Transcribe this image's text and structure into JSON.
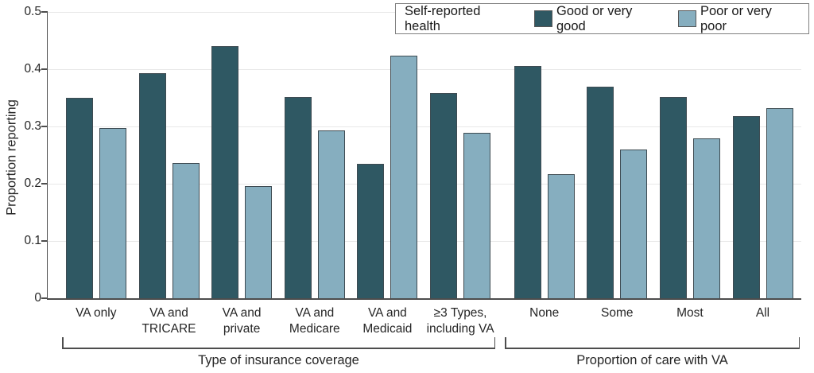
{
  "chart_data": {
    "type": "bar",
    "title": "",
    "ylabel": "Proportion reporting",
    "ylim": [
      0,
      0.5
    ],
    "yticks": [
      0,
      0.1,
      0.2,
      0.3,
      0.4,
      0.5
    ],
    "ytick_labels": [
      "0",
      "0.1",
      "0.2",
      "0.3",
      "0.4",
      "0.5"
    ],
    "grid": "horizontal",
    "legend": {
      "title": "Self-reported health",
      "position": "top-right"
    },
    "categories": [
      "VA only",
      "VA and TRICARE",
      "VA and private",
      "VA and Medicare",
      "VA and Medicaid",
      "≥3 Types, including VA",
      "None",
      "Some",
      "Most",
      "All"
    ],
    "category_label_lines": [
      [
        "VA only"
      ],
      [
        "VA and",
        "TRICARE"
      ],
      [
        "VA and",
        "private"
      ],
      [
        "VA and",
        "Medicare"
      ],
      [
        "VA and",
        "Medicaid"
      ],
      [
        "≥3 Types,",
        "including VA"
      ],
      [
        "None"
      ],
      [
        "Some"
      ],
      [
        "Most"
      ],
      [
        "All"
      ]
    ],
    "series": [
      {
        "name": "Good or very good",
        "color": "#2f5863",
        "values": [
          0.35,
          0.393,
          0.44,
          0.352,
          0.235,
          0.358,
          0.406,
          0.37,
          0.352,
          0.318
        ]
      },
      {
        "name": "Poor or very poor",
        "color": "#86aebf",
        "values": [
          0.297,
          0.236,
          0.196,
          0.293,
          0.424,
          0.289,
          0.216,
          0.26,
          0.279,
          0.332
        ]
      }
    ],
    "axis_groups": [
      {
        "label": "Type of insurance coverage",
        "category_indexes": [
          0,
          1,
          2,
          3,
          4,
          5
        ]
      },
      {
        "label": "Proportion of care with VA",
        "category_indexes": [
          6,
          7,
          8,
          9
        ]
      }
    ]
  }
}
